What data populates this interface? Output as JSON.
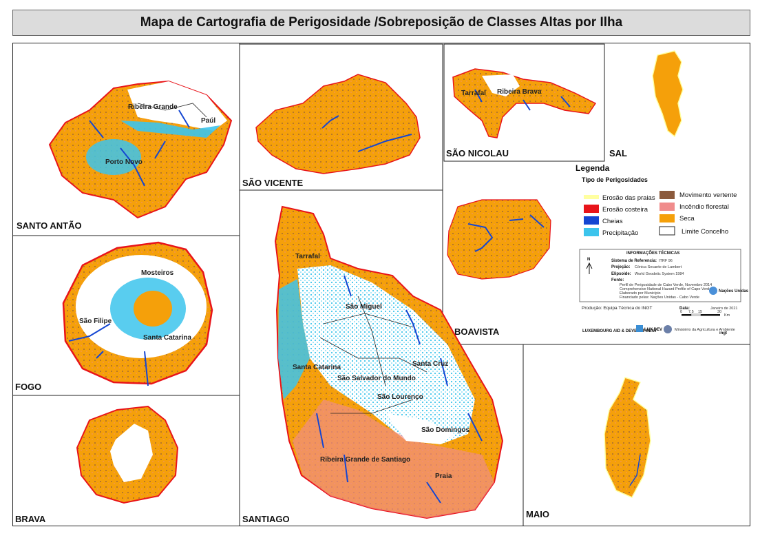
{
  "title": "Mapa de Cartografia de Perigosidade /Sobreposição de Classes Altas  por Ilha",
  "islands": {
    "santo_antao": {
      "label": "SANTO ANTÃO",
      "places": [
        "Ribeira Grande",
        "Paúl",
        "Porto Novo"
      ]
    },
    "sao_vicente": {
      "label": "SÃO VICENTE"
    },
    "sao_nicolau": {
      "label": "SÃO NICOLAU",
      "places": [
        "Tarrafal",
        "Ribeira Brava"
      ]
    },
    "sal": {
      "label": "SAL"
    },
    "boavista": {
      "label": "BOAVISTA"
    },
    "fogo": {
      "label": "FOGO",
      "places": [
        "Mosteiros",
        "São Filipe",
        "Santa Catarina"
      ]
    },
    "brava": {
      "label": "BRAVA"
    },
    "santiago": {
      "label": "SANTIAGO",
      "places": [
        "Tarrafal",
        "São Miguel",
        "Santa Catarina",
        "São Salvador do Mundo",
        "Santa Cruz",
        "São Lourenço",
        "São Domingos",
        "Ribeira Grande de Santiago",
        "Praia"
      ]
    },
    "maio": {
      "label": "MAIO"
    }
  },
  "legend": {
    "title": "Legenda",
    "subtitle": "Tipo de Perigosidades",
    "items": [
      {
        "label": "Erosão das praias",
        "color": "#ffffa0"
      },
      {
        "label": "Erosão costeira",
        "color": "#e8141a"
      },
      {
        "label": "Cheias",
        "color": "#1446d2"
      },
      {
        "label": "Precipitação",
        "color": "#3cc4ec"
      },
      {
        "label": "Movimento vertente",
        "color": "#8b5a3c"
      },
      {
        "label": "Incêndio florestal",
        "color": "#f08c8c"
      },
      {
        "label": "Seca",
        "color": "#f5a00a"
      },
      {
        "label": "Limite Concelho",
        "color": "#ffffff"
      }
    ]
  },
  "tech_info": {
    "heading": "INFORMAÇÕES TÉCNICAS",
    "rows": [
      {
        "key": "Sistema de Referencia:",
        "value": "ITRF 96"
      },
      {
        "key": "Projeção:",
        "value": "Cónica Secante de Lambert"
      },
      {
        "key": "Elipsoide:",
        "value": "World Geodetic System 1984"
      },
      {
        "key": "Fonte:",
        "value": "Perfil de Perigosidade de Cabo Verde, Novembro 2014"
      }
    ],
    "source_lines": [
      "Comprehensive National Hazard Profile of Cape Verde",
      "Elaborado por Município",
      "Financiado pelas: Nações Unidas - Cabo Verde"
    ],
    "north": "N",
    "un_label": "Nações Unidas",
    "production": "Produção: Equipa Técnica do INGT",
    "date_label": "Data:",
    "date_value": "Janeiro de 2021",
    "scale_labels": [
      "0",
      "7,5",
      "15",
      "30",
      "Km"
    ],
    "logos": [
      "LUXEMBOURG AID & DEVELOPMENT",
      "LUX DEV",
      "Ministério da Agricultura e Ambiente",
      "ingt"
    ]
  }
}
